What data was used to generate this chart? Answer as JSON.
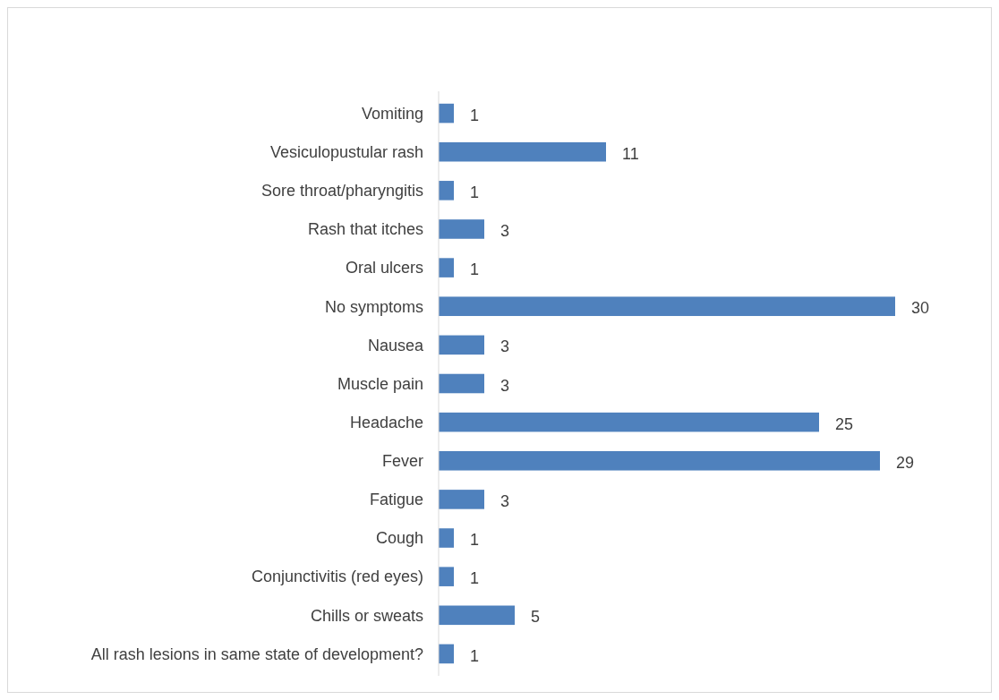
{
  "chart_data": {
    "type": "bar",
    "orientation": "horizontal",
    "categories": [
      "Vomiting",
      "Vesiculopustular rash",
      "Sore throat/pharyngitis",
      "Rash that itches",
      "Oral ulcers",
      "No symptoms",
      "Nausea",
      "Muscle pain",
      "Headache",
      "Fever",
      "Fatigue",
      "Cough",
      "Conjunctivitis (red eyes)",
      "Chills or sweats",
      "All rash lesions in same state of development?"
    ],
    "values": [
      1,
      11,
      1,
      3,
      1,
      30,
      3,
      3,
      25,
      29,
      3,
      1,
      1,
      5,
      1
    ],
    "color": "#4f81bd",
    "data_labels": true
  }
}
